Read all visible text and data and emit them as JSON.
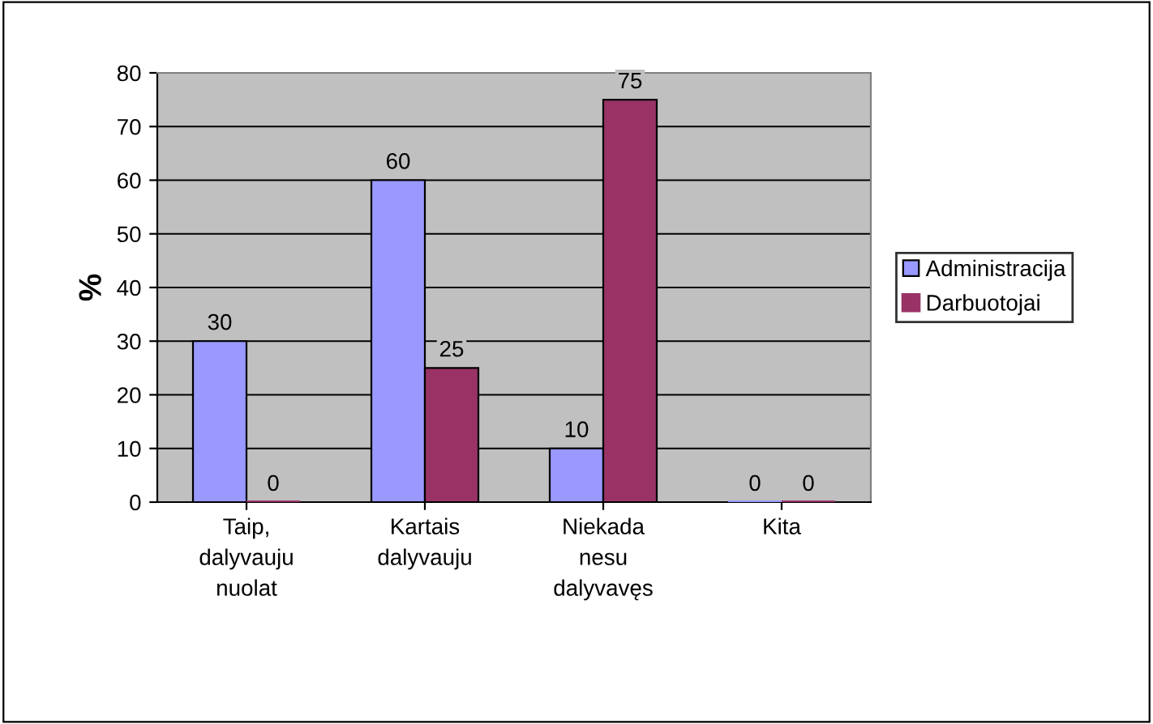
{
  "chart_data": {
    "type": "bar",
    "ylabel": "%",
    "categories": [
      "Taip,\ndalyvauju\nnuolat",
      "Kartais\ndalyvauju",
      "Niekada\nnesu\ndalyvavęs",
      "Kita"
    ],
    "series": [
      {
        "name": "Administracija",
        "color": "#9999ff",
        "values": [
          30,
          60,
          10,
          0
        ]
      },
      {
        "name": "Darbuotojai",
        "color": "#993366",
        "values": [
          0,
          25,
          75,
          0
        ]
      }
    ],
    "ylim": [
      0,
      80
    ],
    "yticks": [
      0,
      10,
      20,
      30,
      40,
      50,
      60,
      70,
      80
    ],
    "grid": "y",
    "legend": "right",
    "data_labels": true
  }
}
